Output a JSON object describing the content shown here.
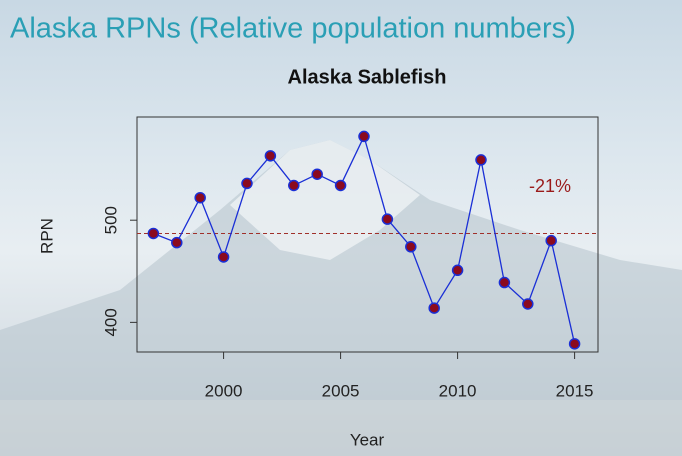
{
  "slide_title": "Alaska RPNs (Relative population numbers)",
  "chart_data": {
    "type": "line",
    "title": "Alaska Sablefish",
    "x_label": "Year",
    "y_label": "RPN",
    "x": [
      1997,
      1998,
      1999,
      2000,
      2001,
      2002,
      2003,
      2004,
      2005,
      2006,
      2007,
      2008,
      2009,
      2010,
      2011,
      2012,
      2013,
      2014,
      2015
    ],
    "series": [
      {
        "name": "RPN",
        "color": "#1a2fd6",
        "marker_color": "#8b0a1e",
        "values": [
          487,
          478,
          522,
          464,
          536,
          563,
          534,
          545,
          534,
          582,
          501,
          474,
          414,
          451,
          559,
          439,
          418,
          480,
          379
        ]
      }
    ],
    "xlim": [
      1996.3,
      2016
    ],
    "ylim": [
      371,
      601
    ],
    "xticks": [
      2000,
      2005,
      2010,
      2015
    ],
    "yticks": [
      400,
      500
    ],
    "reference_line": {
      "value": 487,
      "color": "#a0302a"
    },
    "annotation": "-21%",
    "annotation_color": "#9a1a1a"
  }
}
